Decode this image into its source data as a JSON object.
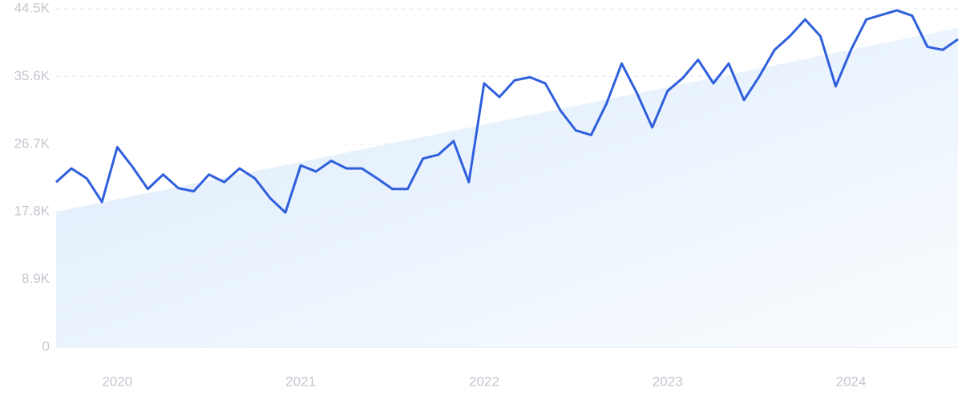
{
  "chart_data": {
    "type": "line",
    "categories": [
      null,
      null,
      null,
      null,
      "2020",
      null,
      null,
      null,
      null,
      null,
      null,
      null,
      null,
      null,
      null,
      null,
      "2021",
      null,
      null,
      null,
      null,
      null,
      null,
      null,
      null,
      null,
      null,
      null,
      "2022",
      null,
      null,
      null,
      null,
      null,
      null,
      null,
      null,
      null,
      null,
      null,
      "2023",
      null,
      null,
      null,
      null,
      null,
      null,
      null,
      null,
      null,
      null,
      null,
      "2024",
      null,
      null,
      null,
      null,
      null,
      null,
      null
    ],
    "series": [
      {
        "color": "#2f5fdd",
        "values": [
          21700,
          23500,
          22200,
          19100,
          26300,
          23700,
          20800,
          22700,
          20900,
          20500,
          22700,
          21700,
          23500,
          22200,
          19600,
          17700,
          23900,
          23100,
          24500,
          23500,
          23500,
          22200,
          20800,
          20800,
          24800,
          25300,
          27100,
          21700,
          34700,
          32900,
          35100,
          35500,
          34700,
          31100,
          28500,
          27900,
          32000,
          37300,
          33400,
          28900,
          33700,
          35400,
          37800,
          34700,
          37300,
          32500,
          35600,
          39100,
          40900,
          43100,
          40900,
          34300,
          39100,
          43100,
          43700,
          44300,
          43600,
          39500,
          39100,
          40500
        ]
      },
      {
        "color": "#dcebfb",
        "area": true,
        "values": [
          17800,
          18210,
          18620,
          19030,
          19440,
          19850,
          20260,
          20670,
          21080,
          21490,
          21900,
          22310,
          22720,
          23130,
          23540,
          23950,
          24360,
          24770,
          25180,
          25590,
          26000,
          26410,
          26820,
          27230,
          27640,
          28050,
          28460,
          28870,
          29280,
          29690,
          30100,
          30510,
          30920,
          31330,
          31740,
          32150,
          32560,
          32970,
          33380,
          33790,
          34200,
          34610,
          35020,
          35430,
          35840,
          36250,
          36660,
          37070,
          37480,
          37890,
          38300,
          38710,
          39120,
          39530,
          39940,
          40350,
          40760,
          41170,
          41580,
          41990
        ]
      }
    ],
    "ylim": [
      0,
      44500
    ],
    "yticks": [
      0,
      {
        "value": 8900,
        "label": "8.9K"
      },
      {
        "value": 17800,
        "label": "17.8K"
      },
      {
        "value": 26700,
        "label": "26.7K"
      },
      {
        "value": 35600,
        "label": "35.6K"
      },
      {
        "value": 44500,
        "label": "44.5K"
      }
    ],
    "grid": true
  }
}
